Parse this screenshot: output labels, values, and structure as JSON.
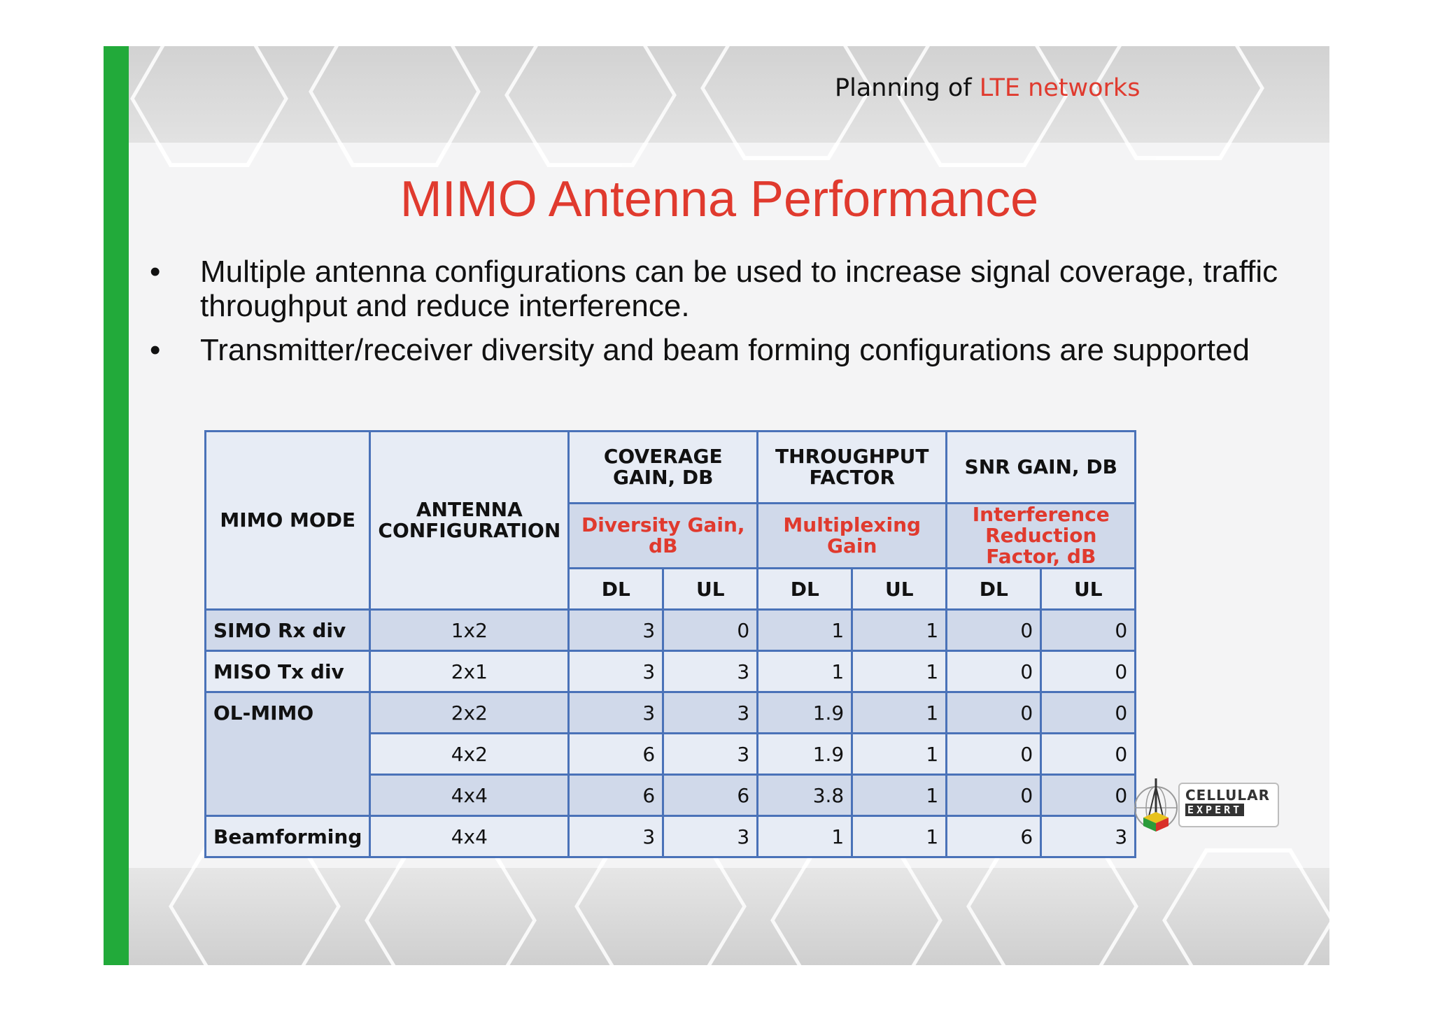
{
  "header": {
    "prefix": "Planning of ",
    "accent": "LTE networks"
  },
  "title": "MIMO Antenna Performance",
  "bullets": [
    "Multiple antenna configurations can be used to increase signal coverage, traffic throughput and reduce interference.",
    "Transmitter/receiver diversity and beam forming configurations are supported"
  ],
  "bullet_glyph": "•",
  "table": {
    "col_mode": "MIMO MODE",
    "col_config": "ANTENNA CONFIGURATION",
    "groups": [
      {
        "header": "COVERAGE GAIN, DB",
        "sub": "Diversity Gain, dB"
      },
      {
        "header": "THROUGHPUT FACTOR",
        "sub": "Multiplexing Gain"
      },
      {
        "header": "SNR GAIN, DB",
        "sub": "Interference Reduction Factor, dB"
      }
    ],
    "dl": "DL",
    "ul": "UL",
    "rows": [
      {
        "mode": "SIMO Rx div",
        "config": "1x2",
        "values": [
          "3",
          "0",
          "1",
          "1",
          "0",
          "0"
        ]
      },
      {
        "mode": "MISO Tx div",
        "config": "2x1",
        "values": [
          "3",
          "3",
          "1",
          "1",
          "0",
          "0"
        ]
      },
      {
        "mode": "OL-MIMO",
        "config": "2x2",
        "values": [
          "3",
          "3",
          "1.9",
          "1",
          "0",
          "0"
        ]
      },
      {
        "mode": "",
        "config": "4x2",
        "values": [
          "6",
          "3",
          "1.9",
          "1",
          "0",
          "0"
        ]
      },
      {
        "mode": "",
        "config": "4x4",
        "values": [
          "6",
          "6",
          "3.8",
          "1",
          "0",
          "0"
        ]
      },
      {
        "mode": "Beamforming",
        "config": "4x4",
        "values": [
          "3",
          "3",
          "1",
          "1",
          "6",
          "3"
        ]
      }
    ]
  },
  "logo": {
    "line1": "CELLULAR",
    "line2": "EXPERT"
  },
  "colors": {
    "accent_red": "#e03a2e",
    "green_bar": "#22aa3a",
    "table_border": "#4a72b8",
    "cell_dark": "#d0d9ea",
    "cell_light": "#e7ecf5"
  }
}
